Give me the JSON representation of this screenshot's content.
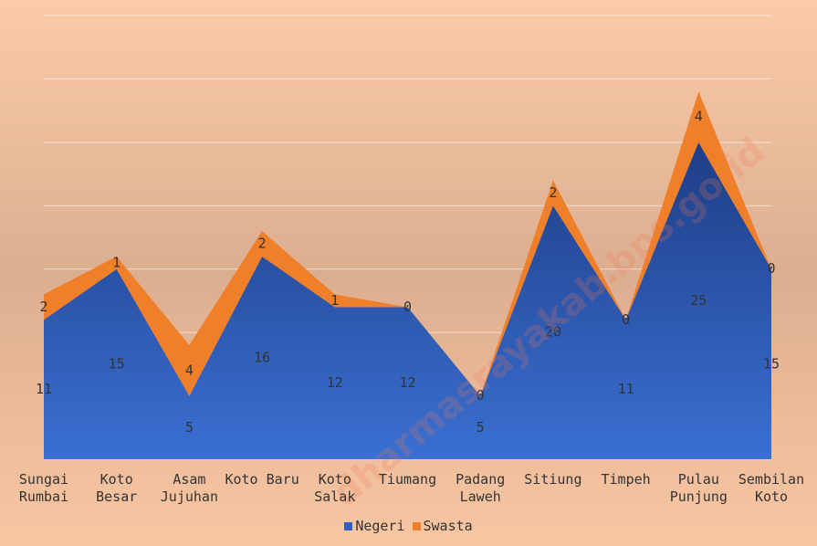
{
  "chart_data": {
    "type": "stacked_area",
    "categories": [
      "Sungai Rumbai",
      "Koto Besar",
      "Asam Jujuhan",
      "Koto Baru",
      "Koto Salak",
      "Tiumang",
      "Padang Laweh",
      "Sitiung",
      "Timpeh",
      "Pulau Punjung",
      "Sembilan Koto"
    ],
    "series": [
      {
        "name": "Negeri",
        "color": "#2f5fbf",
        "values": [
          11,
          15,
          5,
          16,
          12,
          12,
          5,
          20,
          11,
          25,
          15
        ]
      },
      {
        "name": "Swasta",
        "color": "#f07f2a",
        "values": [
          2,
          1,
          4,
          2,
          1,
          0,
          0,
          2,
          0,
          4,
          0
        ]
      }
    ],
    "ylim": [
      0,
      35
    ],
    "yticks": [
      0,
      5,
      10,
      15,
      20,
      25,
      30,
      35
    ],
    "grid": true,
    "legend": "bottom",
    "watermark": "dharmasrayakab.bps.go.id"
  }
}
